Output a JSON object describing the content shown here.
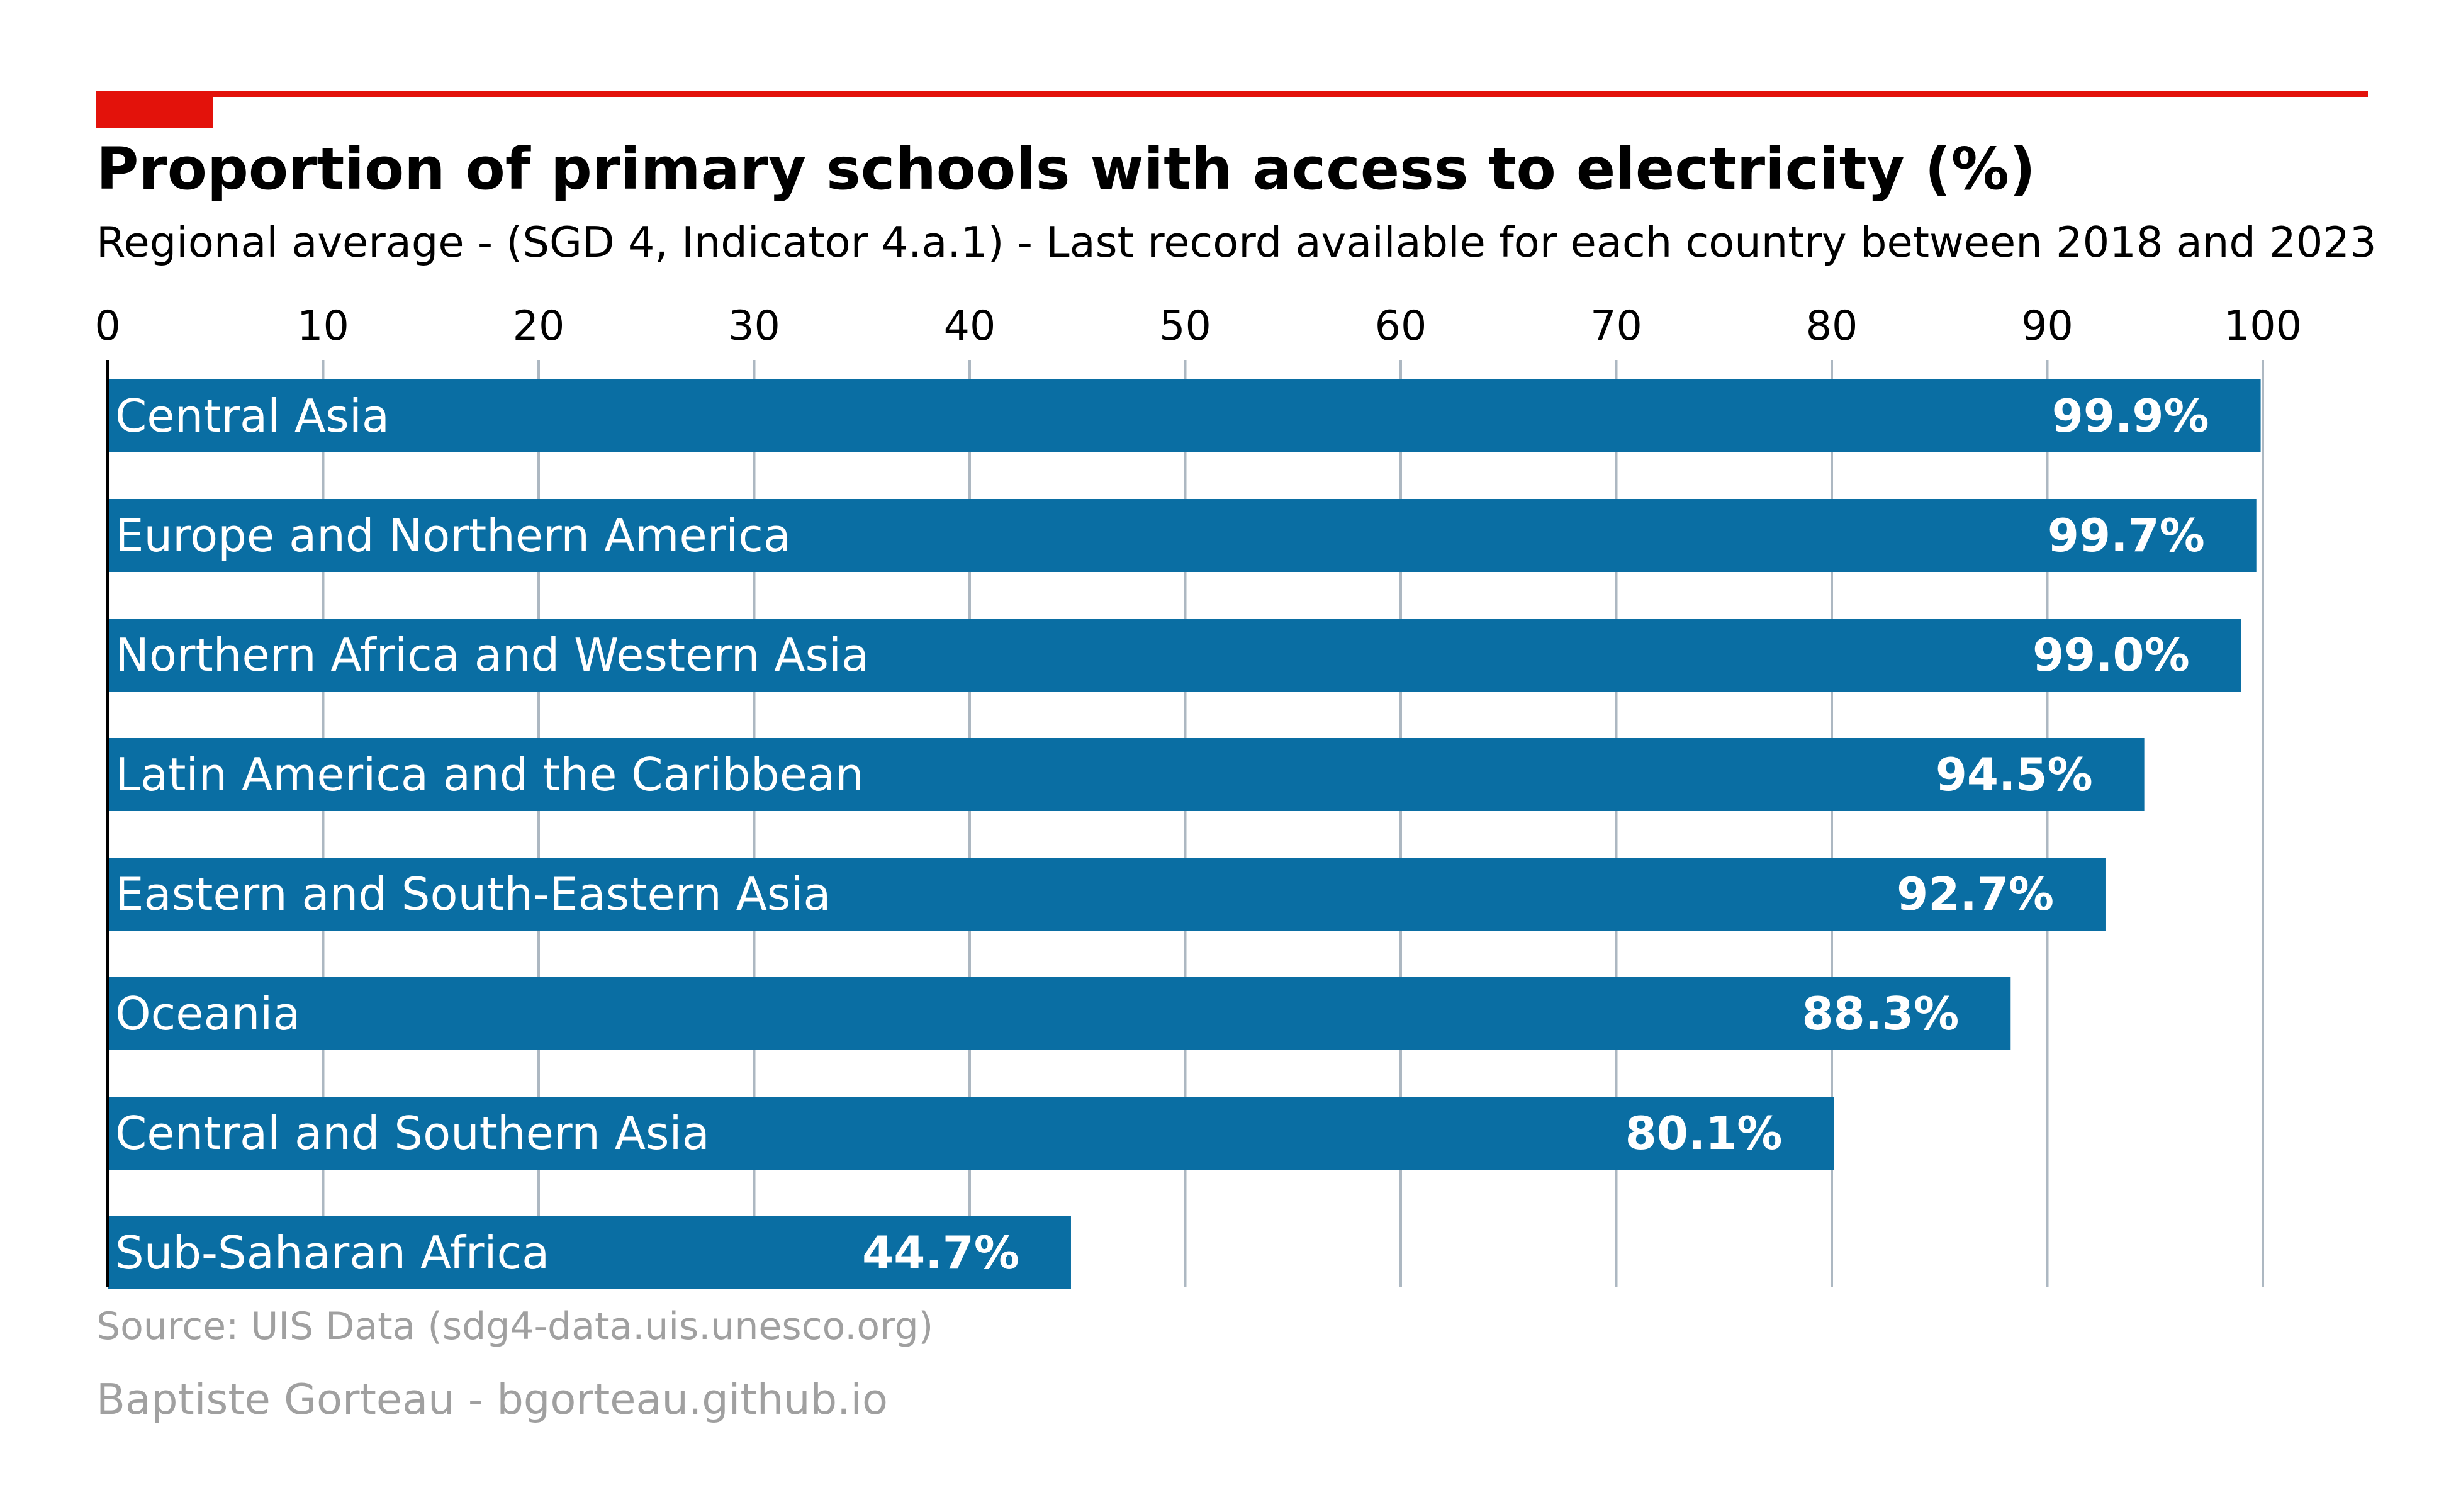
{
  "chart_data": {
    "type": "bar",
    "orientation": "horizontal",
    "title": "Proportion of primary schools with access to electricity (%)",
    "subtitle": "Regional average - (SGD 4, Indicator 4.a.1) - Last record available for each country between 2018 and 2023",
    "categories": [
      "Central Asia",
      "Europe and Northern America",
      "Northern Africa and Western Asia",
      "Latin America and the Caribbean",
      "Eastern and South-Eastern Asia",
      "Oceania",
      "Central and Southern Asia",
      "Sub-Saharan Africa"
    ],
    "values": [
      99.9,
      99.7,
      99.0,
      94.5,
      92.7,
      88.3,
      80.1,
      44.7
    ],
    "value_labels": [
      "99.9%",
      "99.7%",
      "99.0%",
      "94.5%",
      "92.7%",
      "88.3%",
      "80.1%",
      "44.7%"
    ],
    "xlim": [
      0,
      100
    ],
    "xticks": [
      "0",
      "10",
      "20",
      "30",
      "40",
      "50",
      "60",
      "70",
      "80",
      "90",
      "100"
    ],
    "xaxis_position": "top",
    "grid": "vertical",
    "legend": "none"
  },
  "footer": {
    "source": "Source: UIS Data (sdg4-data.uis.unesco.org)",
    "author": "Baptiste Gorteau - bgorteau.github.io"
  },
  "colors": {
    "bar": "#0a6ea3",
    "accent": "#e3120b",
    "grid": "#adb8c2",
    "title": "#000000",
    "footer": "#a0a0a0",
    "bar_text": "#ffffff"
  }
}
